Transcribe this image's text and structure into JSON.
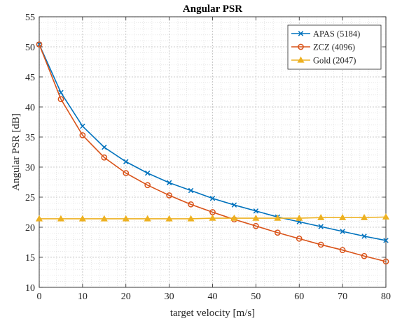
{
  "chart_data": {
    "type": "line",
    "title": "Angular PSR",
    "xlabel": "target velocity [m/s]",
    "ylabel": "Angular PSR [dB]",
    "xlim": [
      0,
      80
    ],
    "ylim": [
      10,
      55
    ],
    "xticks": [
      0,
      10,
      20,
      30,
      40,
      50,
      60,
      70,
      80
    ],
    "yticks": [
      10,
      15,
      20,
      25,
      30,
      35,
      40,
      45,
      50,
      55
    ],
    "grid": true,
    "minor_grid": true,
    "legend_position": "top-right",
    "x": [
      0,
      5,
      10,
      15,
      20,
      25,
      30,
      35,
      40,
      45,
      50,
      55,
      60,
      65,
      70,
      75,
      80
    ],
    "series": [
      {
        "name": "APAS (5184)",
        "color": "#0072BD",
        "marker": "x",
        "values": [
          50.4,
          42.4,
          36.8,
          33.3,
          30.9,
          29.0,
          27.4,
          26.1,
          24.8,
          23.7,
          22.7,
          21.7,
          20.9,
          20.1,
          19.3,
          18.5,
          17.8
        ]
      },
      {
        "name": "ZCZ (4096)",
        "color": "#D95319",
        "marker": "circle",
        "values": [
          50.4,
          41.3,
          35.3,
          31.6,
          29.0,
          27.0,
          25.3,
          23.8,
          22.5,
          21.3,
          20.2,
          19.1,
          18.1,
          17.1,
          16.2,
          15.2,
          14.3
        ]
      },
      {
        "name": "Gold (2047)",
        "color": "#EDB120",
        "marker": "triangle",
        "values": [
          21.4,
          21.4,
          21.4,
          21.4,
          21.4,
          21.4,
          21.4,
          21.4,
          21.5,
          21.5,
          21.5,
          21.5,
          21.5,
          21.6,
          21.6,
          21.6,
          21.7
        ]
      }
    ]
  }
}
